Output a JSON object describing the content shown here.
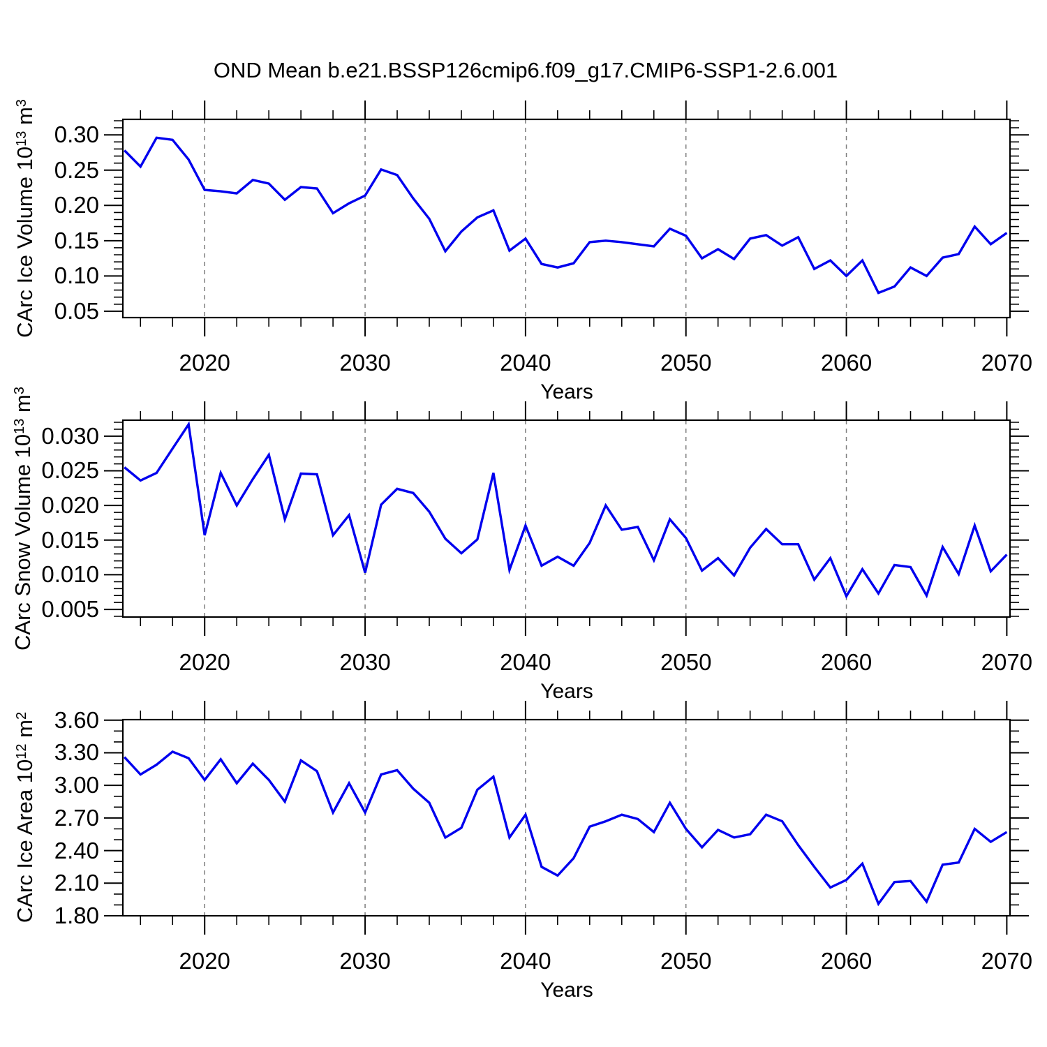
{
  "title": "OND Mean b.e21.BSSP126cmip6.f09_g17.CMIP6-SSP1-2.6.001",
  "colors": {
    "line": "#0000EE",
    "grid": "#7D7D7D",
    "axis": "#000000",
    "text": "#000000",
    "background": "#FFFFFF"
  },
  "years": [
    2015,
    2016,
    2017,
    2018,
    2019,
    2020,
    2021,
    2022,
    2023,
    2024,
    2025,
    2026,
    2027,
    2028,
    2029,
    2030,
    2031,
    2032,
    2033,
    2034,
    2035,
    2036,
    2037,
    2038,
    2039,
    2040,
    2041,
    2042,
    2043,
    2044,
    2045,
    2046,
    2047,
    2048,
    2049,
    2050,
    2051,
    2052,
    2053,
    2054,
    2055,
    2056,
    2057,
    2058,
    2059,
    2060,
    2061,
    2062,
    2063,
    2064,
    2065,
    2066,
    2067,
    2068,
    2069,
    2070
  ],
  "chart_data": [
    {
      "type": "line",
      "series_name": "CArc Ice Volume",
      "ylabel": "CArc Ice Volume 10^{13} m^{3}",
      "xlabel": "Years",
      "values": [
        0.278,
        0.255,
        0.296,
        0.293,
        0.265,
        0.222,
        0.22,
        0.217,
        0.236,
        0.231,
        0.208,
        0.226,
        0.224,
        0.189,
        0.203,
        0.214,
        0.251,
        0.243,
        0.21,
        0.181,
        0.135,
        0.163,
        0.183,
        0.193,
        0.136,
        0.153,
        0.117,
        0.112,
        0.118,
        0.148,
        0.15,
        0.148,
        0.145,
        0.142,
        0.167,
        0.157,
        0.125,
        0.138,
        0.124,
        0.153,
        0.158,
        0.143,
        0.155,
        0.11,
        0.122,
        0.1,
        0.122,
        0.076,
        0.085,
        0.112,
        0.1,
        0.126,
        0.131,
        0.17,
        0.145,
        0.161
      ],
      "ylim": [
        0.041,
        0.322
      ],
      "yticks": [
        0.05,
        0.1,
        0.15,
        0.2,
        0.25,
        0.3
      ],
      "ytick_labels": [
        "0.05",
        "0.10",
        "0.15",
        "0.20",
        "0.25",
        "0.30"
      ],
      "y_minor_step": 0.01,
      "y_major_every": 5,
      "xlim": [
        2014.9,
        2070.2
      ],
      "xticks": [
        2020,
        2030,
        2040,
        2050,
        2060,
        2070
      ],
      "xtick_labels": [
        "2020",
        "2030",
        "2040",
        "2050",
        "2060",
        "2070"
      ],
      "x_minor_step": 2,
      "x_major_every": 5,
      "grid_x": [
        2020,
        2030,
        2040,
        2050,
        2060
      ],
      "grid": "vertical-dashed",
      "legend": "none"
    },
    {
      "type": "line",
      "series_name": "CArc Snow Volume",
      "ylabel": "CArc Snow Volume 10^{13} m^{3}",
      "xlabel": "Years",
      "values": [
        0.0255,
        0.0236,
        0.0247,
        0.0282,
        0.0317,
        0.0157,
        0.0247,
        0.02,
        0.0238,
        0.0273,
        0.018,
        0.0246,
        0.0245,
        0.0157,
        0.0186,
        0.0103,
        0.0201,
        0.0224,
        0.0218,
        0.0191,
        0.0152,
        0.0131,
        0.0151,
        0.0247,
        0.0107,
        0.0171,
        0.0113,
        0.0126,
        0.0113,
        0.0146,
        0.02,
        0.0165,
        0.0169,
        0.0121,
        0.018,
        0.0153,
        0.0106,
        0.0124,
        0.0099,
        0.0139,
        0.0166,
        0.0144,
        0.0144,
        0.0093,
        0.0124,
        0.0069,
        0.0108,
        0.0073,
        0.0114,
        0.0111,
        0.007,
        0.014,
        0.0101,
        0.0171,
        0.0105,
        0.0129
      ],
      "ylim": [
        0.0039,
        0.0323
      ],
      "yticks": [
        0.005,
        0.01,
        0.015,
        0.02,
        0.025,
        0.03
      ],
      "ytick_labels": [
        "0.005",
        "0.010",
        "0.015",
        "0.020",
        "0.025",
        "0.030"
      ],
      "y_minor_step": 0.001,
      "y_major_every": 5,
      "xlim": [
        2014.9,
        2070.2
      ],
      "xticks": [
        2020,
        2030,
        2040,
        2050,
        2060,
        2070
      ],
      "xtick_labels": [
        "2020",
        "2030",
        "2040",
        "2050",
        "2060",
        "2070"
      ],
      "x_minor_step": 2,
      "x_major_every": 5,
      "grid_x": [
        2020,
        2030,
        2040,
        2050,
        2060
      ],
      "grid": "vertical-dashed",
      "legend": "none"
    },
    {
      "type": "line",
      "series_name": "CArc Ice Area",
      "ylabel": "CArc Ice Area 10^{12} m^{2}",
      "xlabel": "Years",
      "values": [
        3.26,
        3.1,
        3.19,
        3.31,
        3.25,
        3.05,
        3.24,
        3.02,
        3.2,
        3.05,
        2.85,
        3.23,
        3.13,
        2.75,
        3.02,
        2.75,
        3.1,
        3.14,
        2.97,
        2.84,
        2.52,
        2.61,
        2.96,
        3.08,
        2.52,
        2.73,
        2.25,
        2.17,
        2.33,
        2.62,
        2.67,
        2.73,
        2.69,
        2.57,
        2.84,
        2.6,
        2.43,
        2.59,
        2.52,
        2.55,
        2.73,
        2.67,
        2.45,
        2.25,
        2.06,
        2.13,
        2.28,
        1.91,
        2.11,
        2.12,
        1.93,
        2.27,
        2.29,
        2.6,
        2.48,
        2.57
      ],
      "ylim": [
        1.8,
        3.605
      ],
      "yticks": [
        1.8,
        2.1,
        2.4,
        2.7,
        3.0,
        3.3,
        3.6
      ],
      "ytick_labels": [
        "1.80",
        "2.10",
        "2.40",
        "2.70",
        "3.00",
        "3.30",
        "3.60"
      ],
      "y_minor_step": 0.1,
      "y_major_every": 3,
      "xlim": [
        2014.9,
        2070.2
      ],
      "xticks": [
        2020,
        2030,
        2040,
        2050,
        2060,
        2070
      ],
      "xtick_labels": [
        "2020",
        "2030",
        "2040",
        "2050",
        "2060",
        "2070"
      ],
      "x_minor_step": 2,
      "x_major_every": 5,
      "grid_x": [
        2020,
        2030,
        2040,
        2050,
        2060
      ],
      "grid": "vertical-dashed",
      "legend": "none"
    }
  ]
}
